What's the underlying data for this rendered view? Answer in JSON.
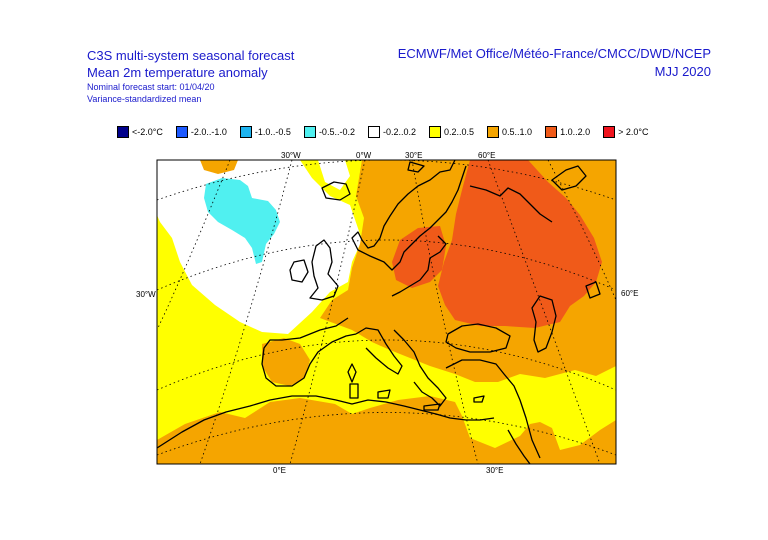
{
  "header": {
    "title_line1": "C3S multi-system seasonal forecast",
    "title_line2": "Mean 2m temperature anomaly",
    "subtitle_line1": "Nominal forecast start: 01/04/20",
    "subtitle_line2": "Variance-standardized mean",
    "centres": "ECMWF/Met Office/Météo-France/CMCC/DWD/NCEP",
    "period": "MJJ 2020"
  },
  "legend": [
    {
      "label": "<-2.0°C",
      "color": "#00008b"
    },
    {
      "label": "-2.0..-1.0",
      "color": "#1e5aff"
    },
    {
      "label": "-1.0..-0.5",
      "color": "#1eb4f0"
    },
    {
      "label": "-0.5..-0.2",
      "color": "#50f0f0"
    },
    {
      "label": "-0.2..0.2",
      "color": "#ffffff"
    },
    {
      "label": "0.2..0.5",
      "color": "#ffff00"
    },
    {
      "label": "0.5..1.0",
      "color": "#f5a500"
    },
    {
      "label": "1.0..2.0",
      "color": "#f05a19"
    },
    {
      "label": "> 2.0°C",
      "color": "#f0141e"
    }
  ],
  "grid_labels": {
    "top": [
      "30°W",
      "0°W",
      "30°E",
      "60°E"
    ],
    "bottom": [
      "0°E",
      "30°E"
    ],
    "left": "30°W",
    "right": "60°E"
  }
}
